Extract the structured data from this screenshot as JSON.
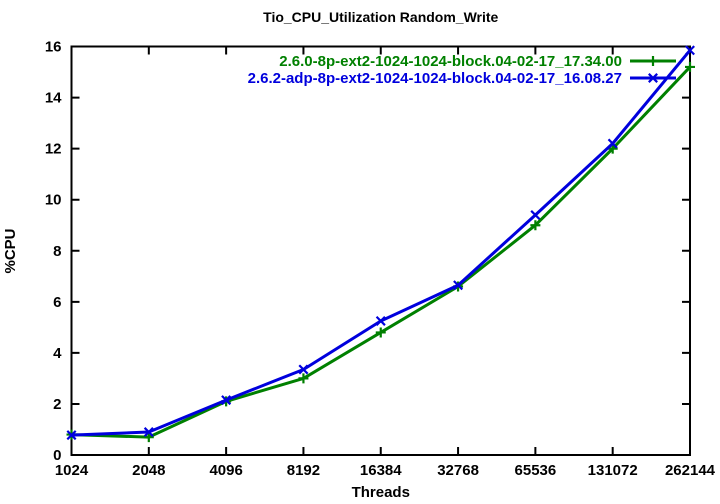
{
  "chart_data": {
    "type": "line",
    "title": "Tio_CPU_Utilization Random_Write",
    "xlabel": "Threads",
    "ylabel": "%CPU",
    "categories": [
      "1024",
      "2048",
      "4096",
      "8192",
      "16384",
      "32768",
      "65536",
      "131072",
      "262144"
    ],
    "x_scale": "log2-categorical",
    "y_ticks": [
      0,
      2,
      4,
      6,
      8,
      10,
      12,
      14,
      16
    ],
    "ylim": [
      0,
      16
    ],
    "grid": false,
    "legend_position": "top-right-inside",
    "background_color": "#ffffff",
    "axis_color": "#000000",
    "text_color": "#000000",
    "series": [
      {
        "name": "2.6.0-8p-ext2-1024-1024-block.04-02-17_17.34.00",
        "color": "#008000",
        "marker": "plus",
        "values": [
          0.8,
          0.7,
          2.1,
          3.0,
          4.8,
          6.6,
          9.0,
          12.0,
          15.2
        ]
      },
      {
        "name": "2.6.2-adp-8p-ext2-1024-1024-block.04-02-17_16.08.27",
        "color": "#0000dd",
        "marker": "cross",
        "values": [
          0.78,
          0.9,
          2.15,
          3.35,
          5.25,
          6.65,
          9.4,
          12.2,
          15.85
        ]
      }
    ]
  }
}
